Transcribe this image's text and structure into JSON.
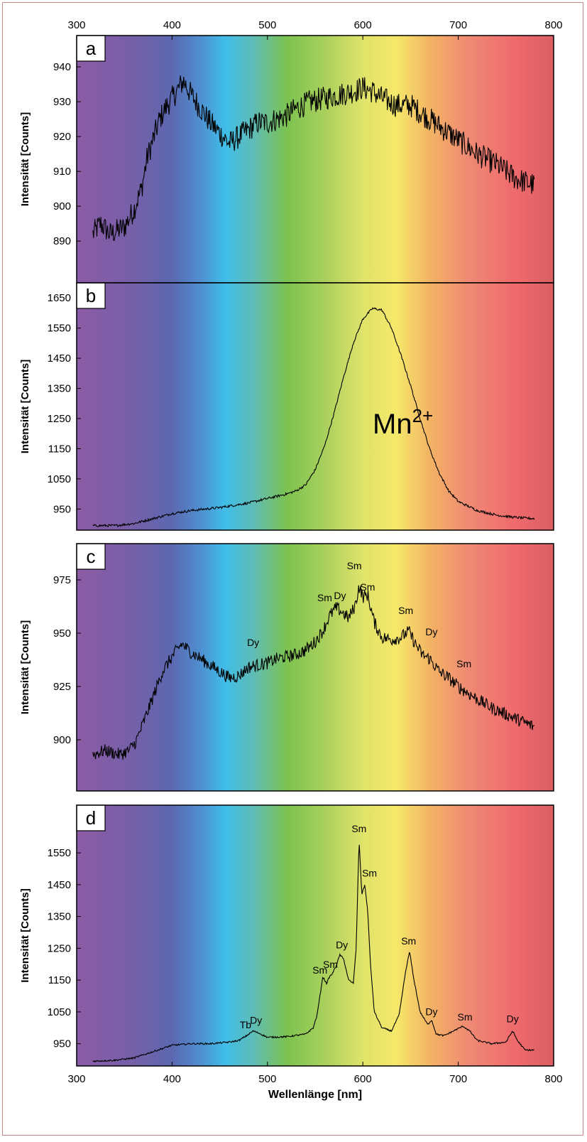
{
  "chart_data": {
    "type": "line",
    "xlabel": "Wellenlänge [nm]",
    "xlim": [
      300,
      800
    ],
    "x_ticks": [
      300,
      400,
      500,
      600,
      700,
      800
    ],
    "x_tick_labels": [
      "300",
      "400",
      "500",
      "600",
      "700",
      "800"
    ],
    "background": "visible spectrum color gradient (violet to red)",
    "panels": [
      {
        "label": "a",
        "ylabel": "Intensität [Counts]",
        "ylim": [
          878,
          949
        ],
        "y_ticks": [
          890,
          900,
          910,
          920,
          930,
          940
        ],
        "y_tick_labels": [
          "890",
          "900",
          "910",
          "920",
          "930",
          "940"
        ],
        "noise": 3.5,
        "points": [
          [
            317,
            892
          ],
          [
            325,
            895
          ],
          [
            335,
            892
          ],
          [
            350,
            894
          ],
          [
            360,
            899
          ],
          [
            368,
            905
          ],
          [
            374,
            914
          ],
          [
            380,
            919
          ],
          [
            387,
            925
          ],
          [
            395,
            929
          ],
          [
            405,
            933
          ],
          [
            412,
            936
          ],
          [
            420,
            932
          ],
          [
            430,
            928
          ],
          [
            440,
            924
          ],
          [
            450,
            921
          ],
          [
            460,
            918
          ],
          [
            470,
            920
          ],
          [
            480,
            922
          ],
          [
            490,
            924
          ],
          [
            500,
            924
          ],
          [
            510,
            925
          ],
          [
            520,
            926
          ],
          [
            530,
            928
          ],
          [
            545,
            930
          ],
          [
            560,
            931
          ],
          [
            575,
            932
          ],
          [
            590,
            933
          ],
          [
            600,
            934
          ],
          [
            610,
            933
          ],
          [
            620,
            931
          ],
          [
            635,
            929
          ],
          [
            650,
            929
          ],
          [
            665,
            926
          ],
          [
            680,
            923
          ],
          [
            700,
            919
          ],
          [
            720,
            915
          ],
          [
            740,
            912
          ],
          [
            760,
            908
          ],
          [
            780,
            906
          ]
        ],
        "annotations": []
      },
      {
        "label": "b",
        "ylabel": "Intensität [Counts]",
        "ylim": [
          880,
          1700
        ],
        "y_ticks": [
          950,
          1050,
          1150,
          1250,
          1350,
          1450,
          1550,
          1650
        ],
        "y_tick_labels": [
          "950",
          "1050",
          "1150",
          "1250",
          "1350",
          "1450",
          "1550",
          "1650"
        ],
        "noise": 4,
        "points": [
          [
            317,
            895
          ],
          [
            340,
            895
          ],
          [
            360,
            902
          ],
          [
            380,
            918
          ],
          [
            400,
            935
          ],
          [
            420,
            945
          ],
          [
            450,
            955
          ],
          [
            480,
            970
          ],
          [
            500,
            985
          ],
          [
            520,
            1000
          ],
          [
            530,
            1010
          ],
          [
            540,
            1030
          ],
          [
            550,
            1080
          ],
          [
            560,
            1160
          ],
          [
            570,
            1270
          ],
          [
            580,
            1390
          ],
          [
            590,
            1500
          ],
          [
            600,
            1580
          ],
          [
            610,
            1615
          ],
          [
            620,
            1610
          ],
          [
            630,
            1550
          ],
          [
            640,
            1460
          ],
          [
            650,
            1360
          ],
          [
            660,
            1250
          ],
          [
            670,
            1150
          ],
          [
            680,
            1070
          ],
          [
            690,
            1010
          ],
          [
            700,
            975
          ],
          [
            720,
            945
          ],
          [
            740,
            930
          ],
          [
            760,
            922
          ],
          [
            780,
            918
          ]
        ],
        "annotations": [
          {
            "text": "Mn",
            "sup": "2+",
            "x": 642,
            "y": 1200,
            "size": "large"
          }
        ]
      },
      {
        "label": "c",
        "ylabel": "Intensität [Counts]",
        "ylim": [
          876,
          992
        ],
        "y_ticks": [
          900,
          925,
          950,
          975
        ],
        "y_tick_labels": [
          "900",
          "925",
          "950",
          "975"
        ],
        "noise": 3,
        "points": [
          [
            317,
            893
          ],
          [
            330,
            895
          ],
          [
            345,
            893
          ],
          [
            355,
            895
          ],
          [
            362,
            899
          ],
          [
            370,
            908
          ],
          [
            380,
            920
          ],
          [
            390,
            932
          ],
          [
            400,
            939
          ],
          [
            410,
            945
          ],
          [
            420,
            941
          ],
          [
            430,
            938
          ],
          [
            440,
            935
          ],
          [
            450,
            932
          ],
          [
            460,
            929
          ],
          [
            470,
            930
          ],
          [
            480,
            934
          ],
          [
            490,
            935
          ],
          [
            500,
            936
          ],
          [
            510,
            938
          ],
          [
            520,
            939
          ],
          [
            530,
            940
          ],
          [
            540,
            942
          ],
          [
            550,
            946
          ],
          [
            558,
            951
          ],
          [
            565,
            958
          ],
          [
            572,
            962
          ],
          [
            578,
            960
          ],
          [
            585,
            957
          ],
          [
            592,
            963
          ],
          [
            596,
            972
          ],
          [
            600,
            967
          ],
          [
            605,
            968
          ],
          [
            612,
            955
          ],
          [
            620,
            948
          ],
          [
            630,
            947
          ],
          [
            640,
            948
          ],
          [
            648,
            951
          ],
          [
            655,
            945
          ],
          [
            662,
            940
          ],
          [
            670,
            938
          ],
          [
            680,
            932
          ],
          [
            690,
            929
          ],
          [
            700,
            925
          ],
          [
            710,
            922
          ],
          [
            720,
            919
          ],
          [
            735,
            915
          ],
          [
            750,
            912
          ],
          [
            765,
            909
          ],
          [
            780,
            906
          ]
        ],
        "annotations": [
          {
            "text": "Dy",
            "x": 485,
            "y": 944
          },
          {
            "text": "Sm",
            "x": 560,
            "y": 965
          },
          {
            "text": "Dy",
            "x": 576,
            "y": 966
          },
          {
            "text": "Sm",
            "x": 591,
            "y": 980
          },
          {
            "text": "Sm",
            "x": 605,
            "y": 970
          },
          {
            "text": "Sm",
            "x": 645,
            "y": 959
          },
          {
            "text": "Dy",
            "x": 672,
            "y": 949
          },
          {
            "text": "Sm",
            "x": 706,
            "y": 934
          }
        ]
      },
      {
        "label": "d",
        "ylabel": "Intensität [Counts]",
        "ylim": [
          880,
          1700
        ],
        "y_ticks": [
          950,
          1050,
          1150,
          1250,
          1350,
          1450,
          1550
        ],
        "y_tick_labels": [
          "950",
          "1050",
          "1150",
          "1250",
          "1350",
          "1450",
          "1550"
        ],
        "noise": 2.5,
        "points": [
          [
            317,
            895
          ],
          [
            340,
            898
          ],
          [
            360,
            905
          ],
          [
            380,
            925
          ],
          [
            400,
            945
          ],
          [
            420,
            950
          ],
          [
            440,
            950
          ],
          [
            460,
            955
          ],
          [
            470,
            960
          ],
          [
            478,
            975
          ],
          [
            485,
            990
          ],
          [
            492,
            982
          ],
          [
            500,
            970
          ],
          [
            520,
            972
          ],
          [
            540,
            980
          ],
          [
            548,
            1000
          ],
          [
            552,
            1040
          ],
          [
            556,
            1120
          ],
          [
            558,
            1160
          ],
          [
            562,
            1140
          ],
          [
            565,
            1160
          ],
          [
            568,
            1170
          ],
          [
            572,
            1195
          ],
          [
            576,
            1230
          ],
          [
            580,
            1215
          ],
          [
            585,
            1150
          ],
          [
            590,
            1140
          ],
          [
            593,
            1250
          ],
          [
            596,
            1590
          ],
          [
            599,
            1420
          ],
          [
            602,
            1450
          ],
          [
            605,
            1370
          ],
          [
            608,
            1200
          ],
          [
            612,
            1050
          ],
          [
            620,
            1000
          ],
          [
            630,
            990
          ],
          [
            638,
            1040
          ],
          [
            645,
            1180
          ],
          [
            649,
            1240
          ],
          [
            653,
            1160
          ],
          [
            660,
            1050
          ],
          [
            668,
            1010
          ],
          [
            672,
            1025
          ],
          [
            677,
            980
          ],
          [
            685,
            975
          ],
          [
            695,
            990
          ],
          [
            705,
            1005
          ],
          [
            712,
            990
          ],
          [
            720,
            960
          ],
          [
            735,
            950
          ],
          [
            750,
            955
          ],
          [
            757,
            990
          ],
          [
            762,
            960
          ],
          [
            770,
            930
          ],
          [
            780,
            930
          ]
        ],
        "annotations": [
          {
            "text": "Tb",
            "x": 477,
            "y": 998
          },
          {
            "text": "Dy",
            "x": 488,
            "y": 1013
          },
          {
            "text": "Sm",
            "x": 555,
            "y": 1170
          },
          {
            "text": "Sm",
            "x": 566,
            "y": 1188
          },
          {
            "text": "Dy",
            "x": 578,
            "y": 1250
          },
          {
            "text": "Sm",
            "x": 596,
            "y": 1615
          },
          {
            "text": "Sm",
            "x": 607,
            "y": 1475
          },
          {
            "text": "Sm",
            "x": 648,
            "y": 1262
          },
          {
            "text": "Dy",
            "x": 672,
            "y": 1040
          },
          {
            "text": "Sm",
            "x": 707,
            "y": 1023
          },
          {
            "text": "Dy",
            "x": 757,
            "y": 1017
          }
        ]
      }
    ]
  }
}
